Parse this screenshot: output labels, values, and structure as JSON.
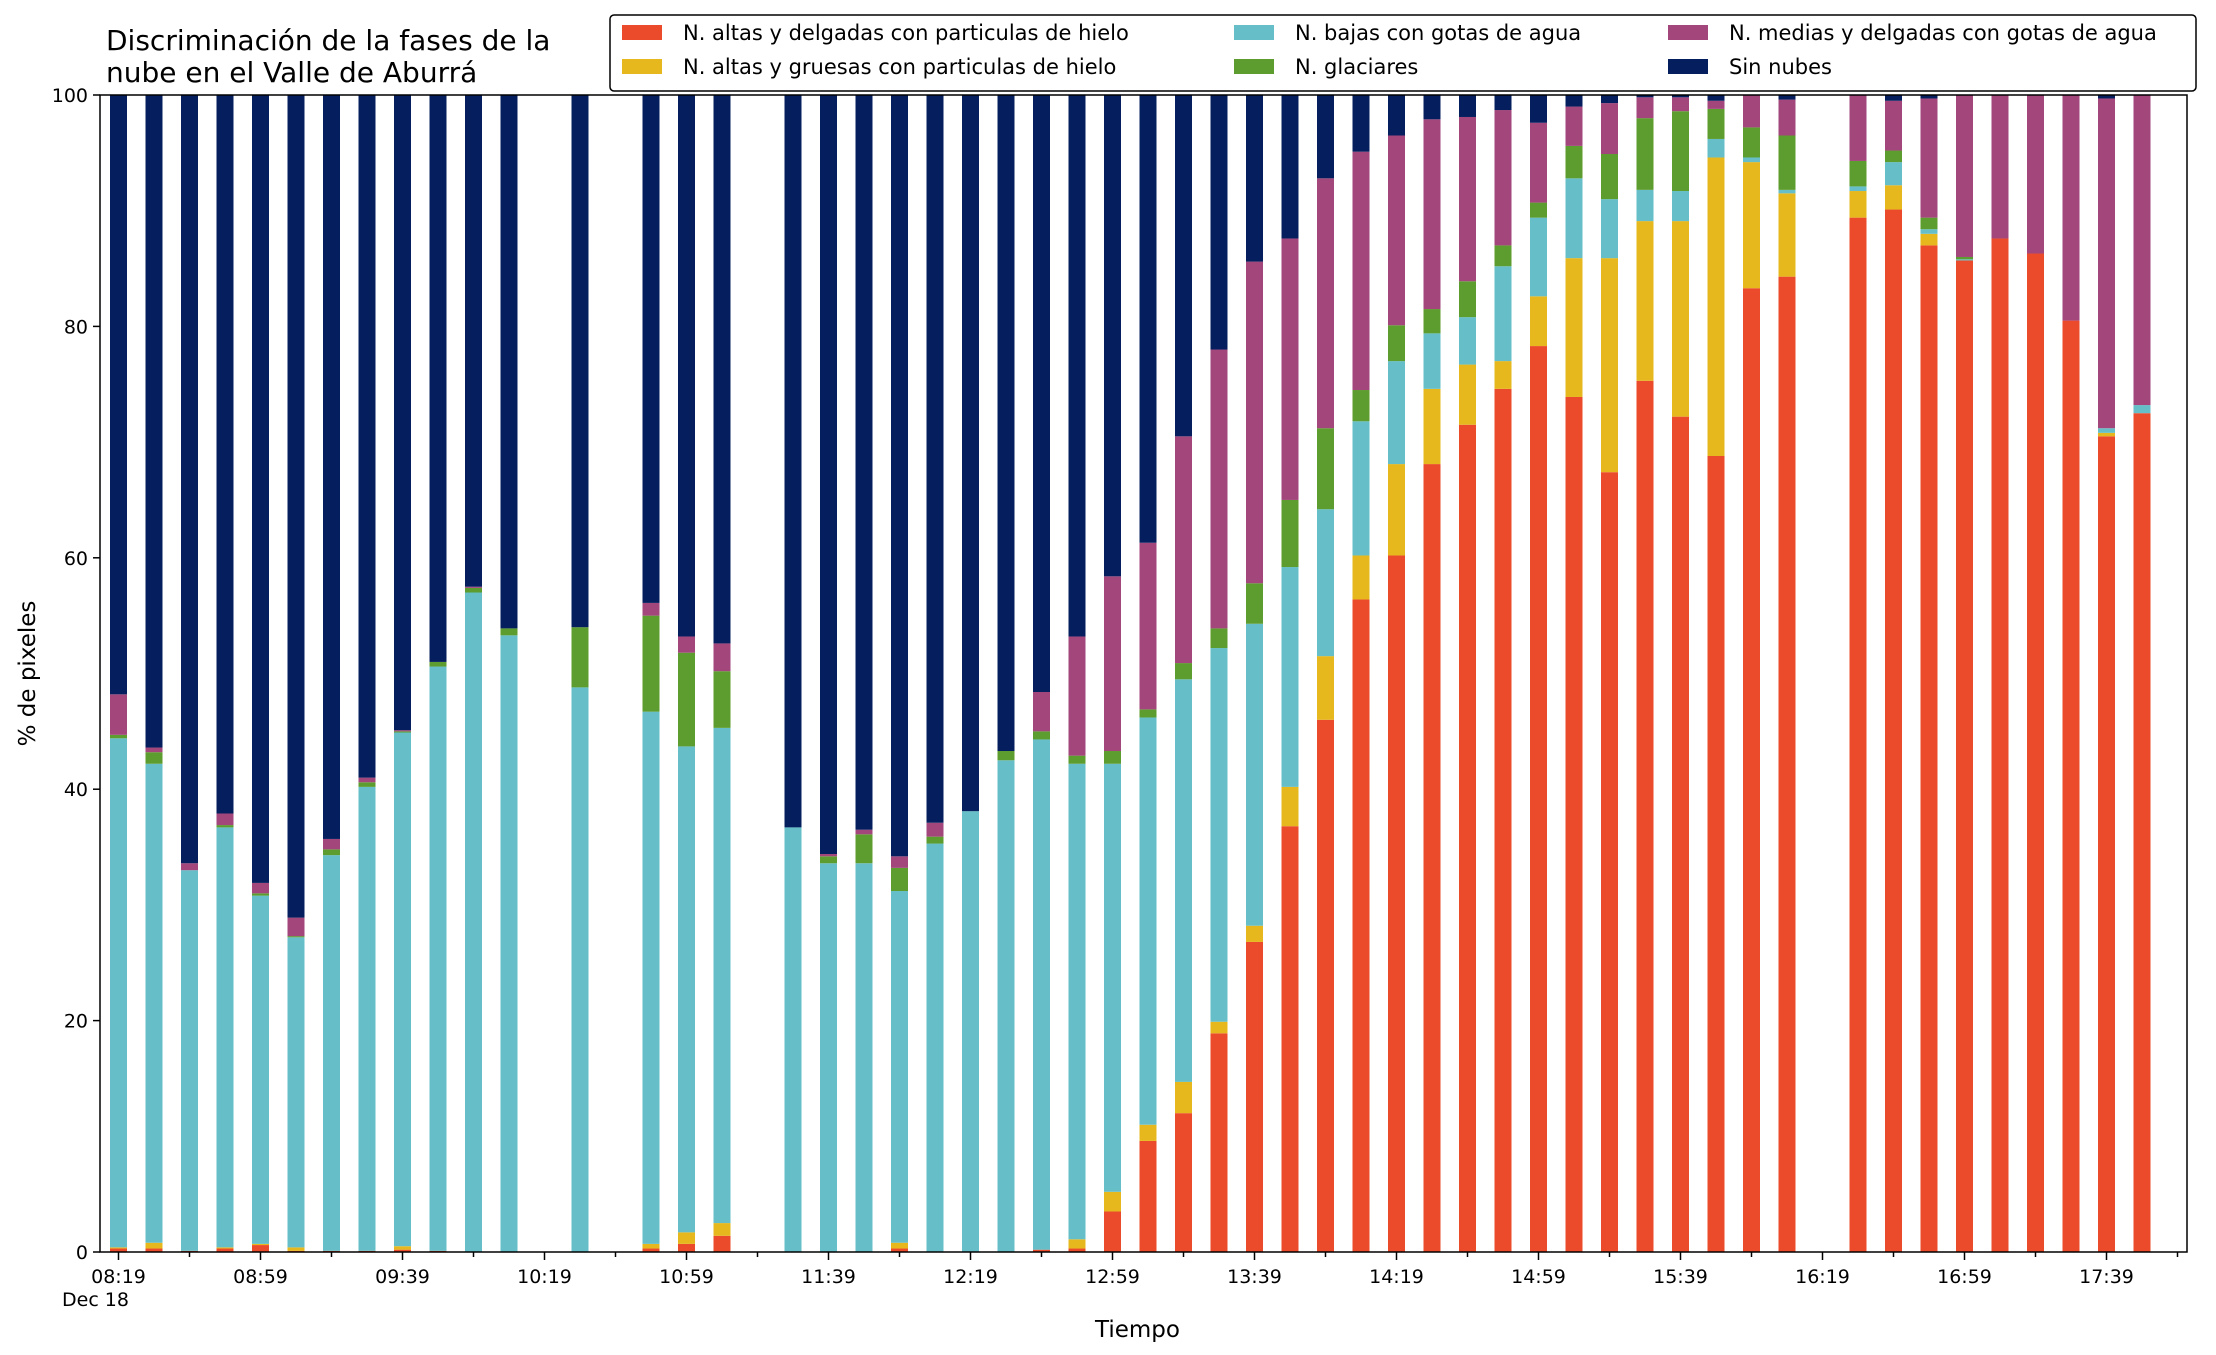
{
  "chart_data": {
    "type": "bar",
    "stacked": true,
    "title": "Discriminación de la fases de la\nnube en el Valle de Aburrá",
    "xlabel": "Tiempo",
    "ylabel": "% de pixeles",
    "ylim": [
      0,
      100
    ],
    "y_ticks": [
      0,
      20,
      40,
      60,
      80,
      100
    ],
    "x_tick_labels": [
      "08:19\nDec 18",
      "08:59",
      "09:39",
      "10:19",
      "10:59",
      "11:39",
      "12:19",
      "12:59",
      "13:39",
      "14:19",
      "14:59",
      "15:39",
      "16:19",
      "16:59",
      "17:39"
    ],
    "x_start_minute": 499,
    "slot_minutes": 10,
    "x_tick_every_slots": 4,
    "slot_count": 59,
    "legend_position": "top-right",
    "colors": {
      "altas_delgadas": "#ec4b2b",
      "altas_gruesas": "#e6b81e",
      "bajas_agua": "#66bfc8",
      "glaciares": "#5d9c2e",
      "medias_agua": "#a3467c",
      "sin_nubes": "#051f5e"
    },
    "series": [
      {
        "key": "altas_delgadas",
        "name": "N. altas y delgadas con particulas de hielo"
      },
      {
        "key": "altas_gruesas",
        "name": "N. altas y gruesas con particulas de hielo"
      },
      {
        "key": "bajas_agua",
        "name": "N. bajas con gotas de agua"
      },
      {
        "key": "glaciares",
        "name": "N. glaciares"
      },
      {
        "key": "medias_agua",
        "name": "N. medias y delgadas con gotas de agua"
      },
      {
        "key": "sin_nubes",
        "name": "Sin nubes"
      }
    ],
    "bars": [
      {
        "slot": 0,
        "v": [
          0.3,
          0.1,
          44.0,
          0.3,
          3.5,
          51.8
        ]
      },
      {
        "slot": 1,
        "v": [
          0.3,
          0.5,
          41.4,
          1.0,
          0.4,
          56.4
        ]
      },
      {
        "slot": 2,
        "v": [
          0.1,
          0.0,
          32.9,
          0.0,
          0.6,
          66.4
        ]
      },
      {
        "slot": 3,
        "v": [
          0.3,
          0.1,
          36.3,
          0.2,
          1.0,
          62.1
        ]
      },
      {
        "slot": 4,
        "v": [
          0.6,
          0.1,
          30.1,
          0.2,
          0.9,
          68.1
        ]
      },
      {
        "slot": 5,
        "v": [
          0.1,
          0.3,
          26.8,
          0.1,
          1.6,
          71.1
        ]
      },
      {
        "slot": 6,
        "v": [
          0.1,
          0.0,
          34.2,
          0.5,
          0.9,
          64.3
        ]
      },
      {
        "slot": 7,
        "v": [
          0.1,
          0.0,
          40.1,
          0.4,
          0.4,
          59.0
        ]
      },
      {
        "slot": 8,
        "v": [
          0.2,
          0.3,
          44.4,
          0.1,
          0.1,
          54.9
        ]
      },
      {
        "slot": 9,
        "v": [
          0.1,
          0.0,
          50.5,
          0.4,
          0.0,
          49.0
        ]
      },
      {
        "slot": 10,
        "v": [
          0.0,
          0.0,
          57.0,
          0.4,
          0.1,
          42.5
        ]
      },
      {
        "slot": 11,
        "v": [
          0.0,
          0.0,
          53.3,
          0.6,
          0.0,
          46.1
        ]
      },
      {
        "slot": 13,
        "v": [
          0.0,
          0.0,
          48.8,
          5.2,
          0.0,
          46.0
        ]
      },
      {
        "slot": 15,
        "v": [
          0.3,
          0.4,
          46.0,
          8.3,
          1.1,
          43.9
        ]
      },
      {
        "slot": 16,
        "v": [
          0.7,
          1.0,
          42.0,
          8.1,
          1.4,
          46.8
        ]
      },
      {
        "slot": 17,
        "v": [
          1.4,
          1.1,
          42.8,
          4.9,
          2.4,
          47.4
        ]
      },
      {
        "slot": 19,
        "v": [
          0.0,
          0.0,
          36.7,
          0.0,
          0.0,
          63.3
        ]
      },
      {
        "slot": 20,
        "v": [
          0.0,
          0.0,
          33.6,
          0.6,
          0.2,
          65.6
        ]
      },
      {
        "slot": 21,
        "v": [
          0.0,
          0.0,
          33.6,
          2.5,
          0.4,
          63.5
        ]
      },
      {
        "slot": 22,
        "v": [
          0.3,
          0.5,
          30.4,
          2.0,
          1.0,
          65.8
        ]
      },
      {
        "slot": 23,
        "v": [
          0.0,
          0.0,
          35.3,
          0.6,
          1.2,
          62.9
        ]
      },
      {
        "slot": 24,
        "v": [
          0.0,
          0.0,
          38.1,
          0.0,
          0.0,
          61.9
        ]
      },
      {
        "slot": 25,
        "v": [
          0.0,
          0.0,
          42.5,
          0.8,
          0.0,
          56.7
        ]
      },
      {
        "slot": 26,
        "v": [
          0.2,
          0.0,
          44.1,
          0.7,
          3.4,
          51.6
        ]
      },
      {
        "slot": 27,
        "v": [
          0.3,
          0.8,
          41.1,
          0.7,
          10.3,
          46.8
        ]
      },
      {
        "slot": 28,
        "v": [
          3.5,
          1.7,
          37.0,
          1.1,
          15.1,
          41.6
        ]
      },
      {
        "slot": 29,
        "v": [
          9.6,
          1.4,
          35.2,
          0.7,
          14.4,
          38.7
        ]
      },
      {
        "slot": 30,
        "v": [
          12.0,
          2.7,
          34.8,
          1.4,
          19.6,
          29.5
        ]
      },
      {
        "slot": 31,
        "v": [
          18.9,
          1.0,
          32.3,
          1.7,
          24.1,
          22.0
        ]
      },
      {
        "slot": 32,
        "v": [
          26.8,
          1.4,
          26.1,
          3.5,
          27.8,
          14.4
        ]
      },
      {
        "slot": 33,
        "v": [
          36.8,
          3.4,
          19.0,
          5.8,
          22.6,
          12.4
        ]
      },
      {
        "slot": 34,
        "v": [
          46.0,
          5.5,
          12.7,
          7.0,
          21.6,
          7.2
        ]
      },
      {
        "slot": 35,
        "v": [
          56.4,
          3.8,
          11.6,
          2.7,
          20.6,
          4.9
        ]
      },
      {
        "slot": 36,
        "v": [
          60.2,
          7.9,
          8.9,
          3.1,
          16.4,
          3.5
        ]
      },
      {
        "slot": 37,
        "v": [
          68.1,
          6.5,
          4.8,
          2.1,
          16.4,
          2.1
        ]
      },
      {
        "slot": 38,
        "v": [
          71.5,
          5.2,
          4.1,
          3.1,
          14.2,
          1.9
        ]
      },
      {
        "slot": 39,
        "v": [
          74.6,
          2.4,
          8.2,
          1.8,
          11.7,
          1.3
        ]
      },
      {
        "slot": 40,
        "v": [
          78.3,
          4.3,
          6.8,
          1.3,
          6.9,
          2.4
        ]
      },
      {
        "slot": 41,
        "v": [
          73.9,
          12.0,
          6.9,
          2.8,
          3.4,
          1.0
        ]
      },
      {
        "slot": 42,
        "v": [
          67.4,
          18.5,
          5.1,
          3.9,
          4.4,
          0.7
        ]
      },
      {
        "slot": 43,
        "v": [
          75.3,
          13.8,
          2.7,
          6.2,
          1.8,
          0.2
        ]
      },
      {
        "slot": 44,
        "v": [
          72.2,
          16.9,
          2.6,
          6.9,
          1.2,
          0.2
        ]
      },
      {
        "slot": 45,
        "v": [
          68.8,
          25.8,
          1.6,
          2.6,
          0.7,
          0.5
        ]
      },
      {
        "slot": 46,
        "v": [
          83.3,
          10.9,
          0.4,
          2.6,
          2.8,
          0.0
        ]
      },
      {
        "slot": 47,
        "v": [
          84.3,
          7.2,
          0.3,
          4.7,
          3.1,
          0.4
        ]
      },
      {
        "slot": 49,
        "v": [
          89.4,
          2.3,
          0.4,
          2.2,
          5.7,
          0.0
        ]
      },
      {
        "slot": 50,
        "v": [
          90.1,
          2.1,
          2.0,
          1.0,
          4.3,
          0.5
        ]
      },
      {
        "slot": 51,
        "v": [
          87.0,
          1.0,
          0.4,
          1.0,
          10.3,
          0.3
        ]
      },
      {
        "slot": 52,
        "v": [
          85.7,
          0.0,
          0.1,
          0.2,
          14.0,
          0.0
        ]
      },
      {
        "slot": 53,
        "v": [
          87.6,
          0.0,
          0.0,
          0.0,
          12.4,
          0.0
        ]
      },
      {
        "slot": 54,
        "v": [
          86.3,
          0.0,
          0.0,
          0.0,
          13.7,
          0.0
        ]
      },
      {
        "slot": 55,
        "v": [
          80.5,
          0.0,
          0.0,
          0.0,
          19.5,
          0.0
        ]
      },
      {
        "slot": 56,
        "v": [
          70.5,
          0.3,
          0.4,
          0.0,
          28.5,
          0.3
        ]
      },
      {
        "slot": 57,
        "v": [
          72.5,
          0.0,
          0.7,
          0.0,
          26.8,
          0.0
        ]
      }
    ]
  }
}
